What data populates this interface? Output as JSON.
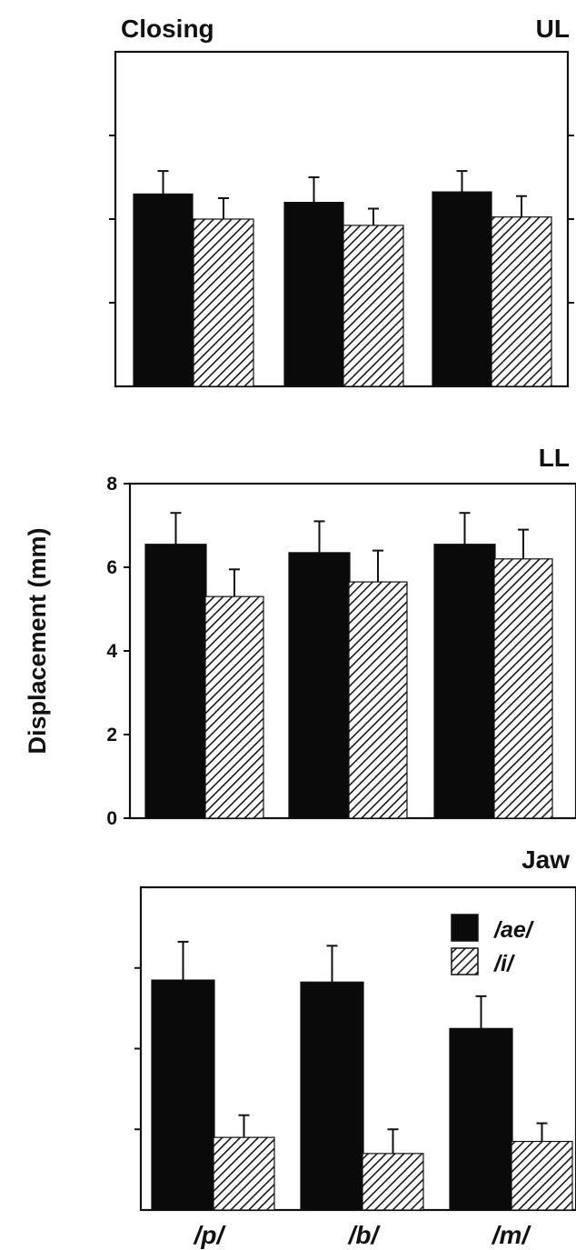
{
  "figure": {
    "header_left": "Closing",
    "ylabel": "Displacement (mm)"
  },
  "legend": [
    {
      "label": "/ae/",
      "fill": "solid",
      "color": "#0a0a0a"
    },
    {
      "label": "/i/",
      "fill": "hatch",
      "color": "#1a1a1a"
    }
  ],
  "chart_data": [
    {
      "type": "bar",
      "title": "UL",
      "categories": [
        "/p/",
        "/b/",
        "/m/"
      ],
      "ylim": [
        0,
        8
      ],
      "tick_values": [
        2,
        4,
        6
      ],
      "tick_labels_shown": false,
      "series": [
        {
          "name": "/ae/",
          "values": [
            4.6,
            4.4,
            4.65
          ],
          "errors": [
            0.55,
            0.6,
            0.5
          ]
        },
        {
          "name": "/i/",
          "values": [
            4.0,
            3.85,
            4.05
          ],
          "errors": [
            0.5,
            0.4,
            0.5
          ]
        }
      ]
    },
    {
      "type": "bar",
      "title": "LL",
      "categories": [
        "/p/",
        "/b/",
        "/m/"
      ],
      "ylim": [
        0,
        8
      ],
      "tick_values": [
        0,
        2,
        4,
        6,
        8
      ],
      "tick_labels_shown": true,
      "tick_labels": [
        "0",
        "2",
        "4",
        "6",
        "8"
      ],
      "series": [
        {
          "name": "/ae/",
          "values": [
            6.55,
            6.35,
            6.55
          ],
          "errors": [
            0.75,
            0.75,
            0.75
          ]
        },
        {
          "name": "/i/",
          "values": [
            5.3,
            5.65,
            6.2
          ],
          "errors": [
            0.65,
            0.75,
            0.7
          ]
        }
      ]
    },
    {
      "type": "bar",
      "title": "Jaw",
      "categories": [
        "/p/",
        "/b/",
        "/m/"
      ],
      "ylim": [
        0,
        8
      ],
      "tick_values": [
        2,
        4,
        6
      ],
      "tick_labels_shown": false,
      "series": [
        {
          "name": "/ae/",
          "values": [
            5.7,
            5.65,
            4.5
          ],
          "errors": [
            0.95,
            0.9,
            0.8
          ]
        },
        {
          "name": "/i/",
          "values": [
            1.8,
            1.4,
            1.7
          ],
          "errors": [
            0.55,
            0.6,
            0.45
          ]
        }
      ]
    }
  ]
}
